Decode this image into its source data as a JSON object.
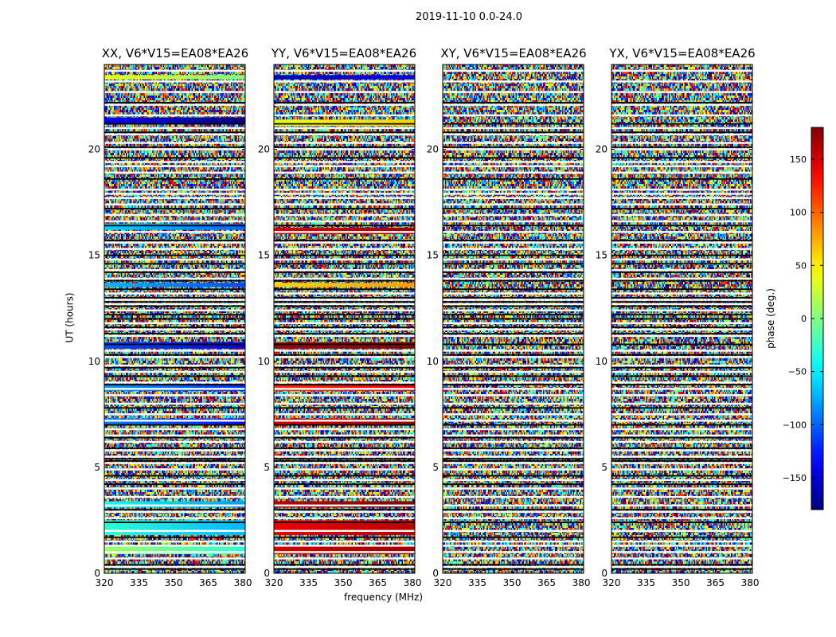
{
  "chart_data": {
    "type": "heatmap",
    "suptitle": "2019-11-10 0.0-24.0",
    "xlabel": "frequency (MHz)",
    "ylabel": "UT (hours)",
    "xlim": [
      320,
      381
    ],
    "ylim": [
      0,
      24
    ],
    "xticks": [
      "320",
      "335",
      "350",
      "365",
      "380"
    ],
    "xtick_values": [
      320,
      335,
      350,
      365,
      380
    ],
    "yticks": [
      "0",
      "5",
      "10",
      "15",
      "20"
    ],
    "ytick_values": [
      0,
      5,
      10,
      15,
      20
    ],
    "colorbar": {
      "label": "phase (deg.)",
      "range": [
        -180,
        180
      ],
      "ticks": [
        "−150",
        "−100",
        "−50",
        "0",
        "50",
        "100",
        "150"
      ],
      "tick_values": [
        -150,
        -100,
        -50,
        0,
        50,
        100,
        150
      ],
      "colormap": "jet"
    },
    "panels": [
      {
        "title": "XX, V6*V15=EA08*EA26",
        "coherent_bands": [
          {
            "t0": 23.3,
            "t1": 23.5,
            "phase": 40
          },
          {
            "t0": 21.2,
            "t1": 21.5,
            "phase": -140
          },
          {
            "t0": 16.2,
            "t1": 16.5,
            "phase": -60
          },
          {
            "t0": 13.5,
            "t1": 13.7,
            "phase": -70
          },
          {
            "t0": 10.6,
            "t1": 10.9,
            "phase": -110
          },
          {
            "t0": 8.6,
            "t1": 8.9,
            "phase": -80
          },
          {
            "t0": 7.0,
            "t1": 7.3,
            "phase": -90
          },
          {
            "t0": 3.1,
            "t1": 3.4,
            "phase": -40
          },
          {
            "t0": 1.8,
            "t1": 2.5,
            "phase": -30
          },
          {
            "t0": 0.9,
            "t1": 1.3,
            "phase": 10
          }
        ]
      },
      {
        "title": "YY, V6*V15=EA08*EA26",
        "coherent_bands": [
          {
            "t0": 23.3,
            "t1": 23.5,
            "phase": -160
          },
          {
            "t0": 21.1,
            "t1": 21.4,
            "phase": 40
          },
          {
            "t0": 16.0,
            "t1": 16.3,
            "phase": 150
          },
          {
            "t0": 13.5,
            "t1": 13.7,
            "phase": 60
          },
          {
            "t0": 10.6,
            "t1": 10.9,
            "phase": 170
          },
          {
            "t0": 8.6,
            "t1": 8.9,
            "phase": 120
          },
          {
            "t0": 7.0,
            "t1": 7.3,
            "phase": 150
          },
          {
            "t0": 3.1,
            "t1": 3.4,
            "phase": 160
          },
          {
            "t0": 1.8,
            "t1": 2.5,
            "phase": 140
          },
          {
            "t0": 0.9,
            "t1": 1.3,
            "phase": 150
          }
        ]
      },
      {
        "title": "XY, V6*V15=EA08*EA26",
        "coherent_bands": []
      },
      {
        "title": "YX, V6*V15=EA08*EA26",
        "coherent_bands": []
      }
    ],
    "flagged_white_rows": [
      23.7,
      23.2,
      22.7,
      22.1,
      21.6,
      21.0,
      20.7,
      20.3,
      20.0,
      19.4,
      19.2,
      18.9,
      18.1,
      17.9,
      17.7,
      17.4,
      16.9,
      16.6,
      16.1,
      15.6,
      15.3,
      14.8,
      14.3,
      13.9,
      13.2,
      12.9,
      12.7,
      12.4,
      11.8,
      11.5,
      11.2,
      10.5,
      10.2,
      9.8,
      9.5,
      9.0,
      8.7,
      8.4,
      8.0,
      7.5,
      7.2,
      6.8,
      6.5,
      6.2,
      5.8,
      5.5,
      5.2,
      4.9,
      4.4,
      4.0,
      3.6,
      3.2,
      2.9,
      2.6,
      2.0,
      1.5,
      1.3,
      1.0,
      0.7,
      0.3
    ],
    "flagged_black_rows": [
      22.2,
      21.2,
      20.8,
      20.1,
      19.6,
      18.6,
      17.2,
      16.4,
      15.7,
      15.0,
      14.6,
      14.2,
      13.8,
      13.4,
      13.0,
      12.8,
      12.6,
      12.2,
      12.0,
      11.6,
      11.3,
      10.8,
      10.3,
      9.7,
      9.3,
      8.9,
      7.8,
      7.0,
      6.4,
      5.9,
      5.4,
      5.3,
      4.6,
      4.2,
      3.0,
      2.4,
      1.7,
      0.4,
      0.2
    ]
  }
}
